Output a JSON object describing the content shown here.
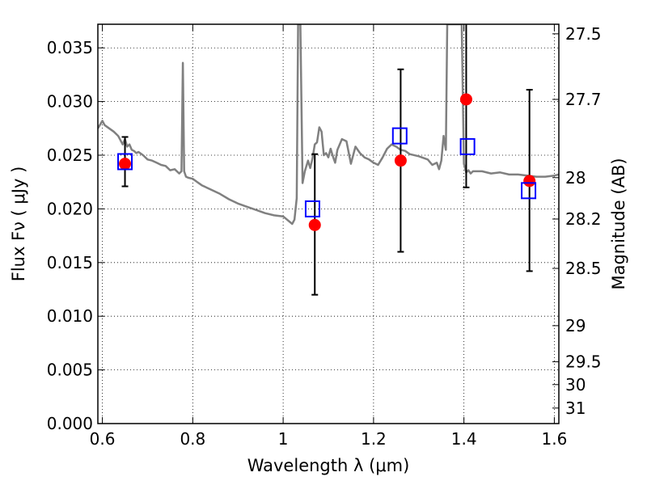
{
  "chart_data": {
    "type": "scatter",
    "xlabel": "Wavelength  λ (μm)",
    "ylabel": "Flux  Fν  ( μJy )",
    "y2label": "Magnitude (AB)",
    "xlim": [
      0.59,
      1.61
    ],
    "ylim": [
      0.0,
      0.0372
    ],
    "grid": true,
    "x_ticks": [
      {
        "value": 0.6,
        "label": "0.6"
      },
      {
        "value": 0.8,
        "label": "0.8"
      },
      {
        "value": 1.0,
        "label": "1"
      },
      {
        "value": 1.2,
        "label": "1.2"
      },
      {
        "value": 1.4,
        "label": "1.4"
      },
      {
        "value": 1.6,
        "label": "1.6"
      }
    ],
    "y_ticks": [
      {
        "value": 0.0,
        "label": "0.000"
      },
      {
        "value": 0.005,
        "label": "0.005"
      },
      {
        "value": 0.01,
        "label": "0.010"
      },
      {
        "value": 0.015,
        "label": "0.015"
      },
      {
        "value": 0.02,
        "label": "0.020"
      },
      {
        "value": 0.025,
        "label": "0.025"
      },
      {
        "value": 0.03,
        "label": "0.030"
      },
      {
        "value": 0.035,
        "label": "0.035"
      }
    ],
    "mag_ticks": [
      {
        "value": 27.5,
        "label": "27.5"
      },
      {
        "value": 27.7,
        "label": "27.7"
      },
      {
        "value": 28.0,
        "label": "28"
      },
      {
        "value": 28.2,
        "label": "28.2"
      },
      {
        "value": 28.5,
        "label": "28.5"
      },
      {
        "value": 29.0,
        "label": "29"
      },
      {
        "value": 29.5,
        "label": "29.5"
      },
      {
        "value": 30.0,
        "label": "30"
      },
      {
        "value": 31.0,
        "label": "31"
      }
    ],
    "series": [
      {
        "kind": "line",
        "color": "#808080",
        "x": [
          0.59,
          0.6,
          0.605,
          0.615,
          0.625,
          0.635,
          0.645,
          0.65,
          0.655,
          0.66,
          0.665,
          0.67,
          0.675,
          0.68,
          0.69,
          0.7,
          0.71,
          0.72,
          0.73,
          0.74,
          0.75,
          0.76,
          0.77,
          0.775,
          0.778,
          0.781,
          0.785,
          0.79,
          0.8,
          0.81,
          0.82,
          0.84,
          0.86,
          0.88,
          0.9,
          0.92,
          0.94,
          0.96,
          0.98,
          1.0,
          1.02,
          1.025,
          1.03,
          1.033,
          1.038,
          1.043,
          1.048,
          1.055,
          1.06,
          1.065,
          1.07,
          1.075,
          1.08,
          1.085,
          1.09,
          1.095,
          1.1,
          1.105,
          1.11,
          1.115,
          1.12,
          1.13,
          1.14,
          1.15,
          1.16,
          1.17,
          1.18,
          1.19,
          1.2,
          1.21,
          1.22,
          1.23,
          1.24,
          1.25,
          1.26,
          1.27,
          1.28,
          1.3,
          1.32,
          1.33,
          1.34,
          1.345,
          1.35,
          1.355,
          1.36,
          1.363,
          1.367,
          1.372,
          1.377,
          1.385,
          1.39,
          1.395,
          1.4,
          1.405,
          1.41,
          1.415,
          1.42,
          1.44,
          1.46,
          1.48,
          1.5,
          1.52,
          1.54,
          1.56,
          1.58,
          1.6,
          1.61
        ],
        "y": [
          0.0275,
          0.0282,
          0.0278,
          0.0275,
          0.0272,
          0.0268,
          0.026,
          0.0265,
          0.0258,
          0.026,
          0.0255,
          0.0254,
          0.0252,
          0.0253,
          0.025,
          0.0246,
          0.0245,
          0.0243,
          0.0241,
          0.024,
          0.0236,
          0.0237,
          0.0233,
          0.0235,
          0.0336,
          0.0235,
          0.023,
          0.0229,
          0.0228,
          0.0225,
          0.0222,
          0.0218,
          0.0214,
          0.0209,
          0.0205,
          0.0202,
          0.0199,
          0.0196,
          0.0194,
          0.0193,
          0.0186,
          0.019,
          0.021,
          0.0372,
          0.0372,
          0.0224,
          0.0235,
          0.0245,
          0.0238,
          0.0247,
          0.026,
          0.0262,
          0.0276,
          0.0272,
          0.025,
          0.0252,
          0.0248,
          0.0256,
          0.0249,
          0.0243,
          0.0255,
          0.0265,
          0.0263,
          0.0242,
          0.0258,
          0.0252,
          0.0248,
          0.0246,
          0.0243,
          0.0241,
          0.0248,
          0.0256,
          0.026,
          0.0258,
          0.0255,
          0.0254,
          0.0251,
          0.0249,
          0.0246,
          0.0241,
          0.0243,
          0.0237,
          0.0245,
          0.0268,
          0.0255,
          0.0372,
          0.0372,
          0.0372,
          0.0372,
          0.0372,
          0.0372,
          0.0372,
          0.0242,
          0.0234,
          0.0236,
          0.0233,
          0.0235,
          0.0235,
          0.0233,
          0.0234,
          0.0232,
          0.0232,
          0.0231,
          0.023,
          0.023,
          0.0231,
          0.0232
        ]
      },
      {
        "kind": "errorbar",
        "color": "#000000",
        "x": [
          0.65,
          1.07,
          1.26,
          1.405,
          1.545
        ],
        "y": [
          0.0242,
          0.0185,
          0.0245,
          0.0302,
          0.0226
        ],
        "yerr_low": [
          0.0021,
          0.0065,
          0.0085,
          0.0082,
          0.0084
        ],
        "yerr_high": [
          0.0025,
          0.0066,
          0.0085,
          0.0085,
          0.0085
        ]
      },
      {
        "kind": "markers",
        "marker": "circle",
        "color": "#ff0000",
        "x": [
          0.65,
          1.07,
          1.26,
          1.405,
          1.545
        ],
        "y": [
          0.0242,
          0.0185,
          0.0245,
          0.0302,
          0.0226
        ]
      },
      {
        "kind": "markers",
        "marker": "square-open",
        "color": "#0000ff",
        "x": [
          0.65,
          1.065,
          1.258,
          1.408,
          1.543
        ],
        "y": [
          0.0244,
          0.02,
          0.0268,
          0.0258,
          0.0217
        ]
      }
    ]
  }
}
